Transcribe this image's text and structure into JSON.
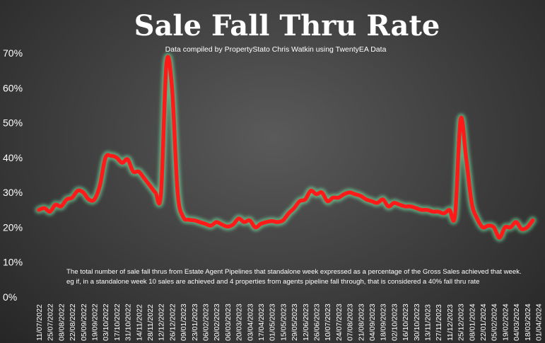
{
  "chart_data": {
    "type": "line",
    "title": "Sale Fall Thru Rate",
    "subtitle": "Data compiled by PropertyStato Chris Watkin using TwentyEA Data",
    "note_line1": "The total number of sale fall thrus from Estate Agent Pipelines that standalone week expressed as a percentage of the Gross Sales achieved that week.",
    "note_line2": "eg if, in a standalone week 10 sales are achieved and 4 properties from agents pipeline fall through, that is considered a 40%  fall thru rate",
    "y_ticks": [
      "0%",
      "10%",
      "20%",
      "30%",
      "40%",
      "50%",
      "60%",
      "70%"
    ],
    "ylim": [
      0,
      70
    ],
    "x_ticks": [
      "11/07/2022",
      "25/07/2022",
      "08/08/2022",
      "22/08/2022",
      "05/09/2022",
      "19/09/2022",
      "03/10/2022",
      "17/10/2022",
      "31/10/2022",
      "14/11/2022",
      "28/11/2022",
      "12/12/2022",
      "26/12/2022",
      "09/01/2023",
      "23/01/2023",
      "06/02/2023",
      "20/02/2023",
      "06/03/2023",
      "20/03/2023",
      "03/04/2023",
      "17/04/2023",
      "01/05/2023",
      "15/05/2023",
      "29/05/2023",
      "12/06/2023",
      "26/06/2023",
      "10/07/2023",
      "24/07/2023",
      "07/08/2023",
      "21/08/2023",
      "04/09/2023",
      "18/09/2023",
      "02/10/2023",
      "16/10/2023",
      "30/10/2023",
      "13/11/2023",
      "27/11/2023",
      "11/12/2023",
      "25/12/2023",
      "08/01/2024",
      "22/01/2024",
      "05/02/2024",
      "19/02/2024",
      "04/03/2024",
      "18/03/2024",
      "01/04/2024"
    ],
    "grid": false,
    "legend": "none",
    "line_color": "#ff1a1a",
    "glow_color": "#7dffb0",
    "series": [
      {
        "x_index": [
          0,
          0.5,
          1,
          1.5,
          2,
          2.5,
          3,
          3.5,
          4,
          4.5,
          5,
          5.5,
          6,
          6.5,
          7,
          7.5,
          8,
          8.5,
          9,
          9.5,
          10,
          10.5,
          11,
          11.5,
          12,
          12.5,
          13,
          13.5,
          14,
          14.5,
          15,
          15.5,
          16,
          16.5,
          17,
          17.5,
          18,
          18.5,
          19,
          19.5,
          20,
          20.5,
          21,
          21.5,
          22,
          22.5,
          23,
          23.5,
          24,
          24.5,
          25,
          25.5,
          26,
          26.5,
          27,
          27.5,
          28,
          28.5,
          29,
          29.5,
          30,
          30.5,
          31,
          31.5,
          32,
          32.5,
          33,
          33.5,
          34,
          34.5,
          35,
          35.5,
          36,
          36.5,
          37,
          37.5,
          38,
          38.5,
          39,
          39.5,
          40,
          40.5,
          41,
          41.5,
          42,
          42.5,
          43,
          43.5,
          44,
          44.5
        ],
        "values": [
          25,
          25.5,
          24.5,
          26.5,
          26,
          28,
          28.5,
          30.5,
          30,
          28,
          28,
          32,
          40,
          40.5,
          40,
          38.5,
          39.5,
          36,
          36,
          34,
          32,
          30,
          29.5,
          67,
          60,
          30,
          23,
          22.2,
          22,
          21.5,
          21,
          20.5,
          21.5,
          20.8,
          20.2,
          20.8,
          22.5,
          21.5,
          22,
          20,
          21,
          21.5,
          21.8,
          21.5,
          22,
          24,
          25.5,
          27.5,
          28,
          30.5,
          29.5,
          30,
          27.5,
          28.5,
          28.5,
          29.5,
          30,
          29.5,
          29,
          28,
          27.5,
          27,
          28,
          26,
          27,
          26.5,
          26,
          26,
          25.5,
          25,
          25,
          24.5,
          24.5,
          24,
          25,
          23.5,
          51,
          40,
          27,
          22.5,
          20,
          20.5,
          20,
          17,
          20,
          20,
          21.5,
          19.5,
          20,
          22
        ]
      }
    ]
  }
}
